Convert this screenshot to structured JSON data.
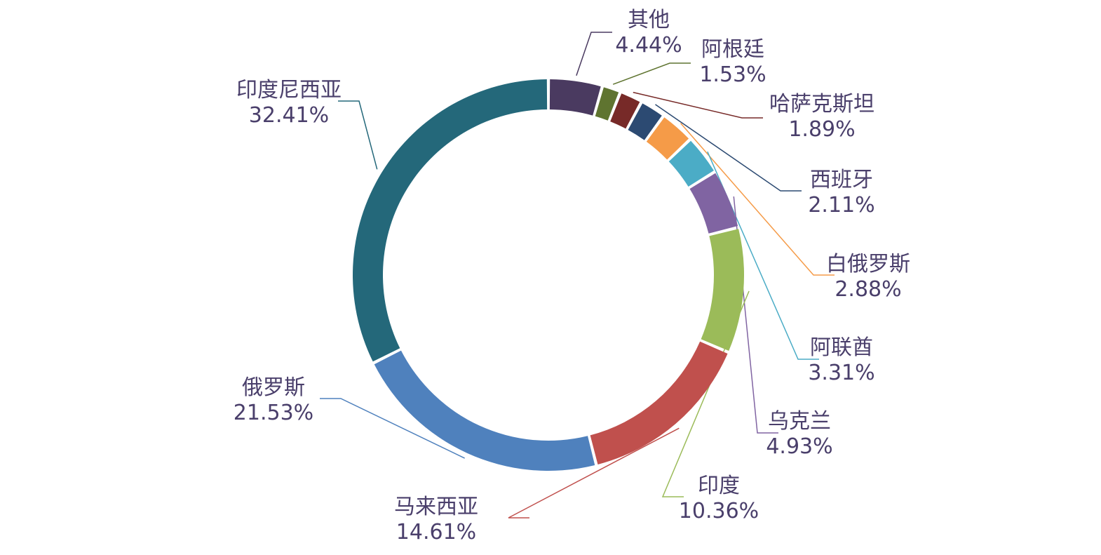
{
  "chart_data": {
    "type": "pie",
    "variant": "donut",
    "title": "",
    "start_angle_deg": 0,
    "direction": "clockwise",
    "slices": [
      {
        "label": "其他",
        "value": 4.44,
        "value_label": "4.44%",
        "color": "#4a3a60"
      },
      {
        "label": "阿根廷",
        "value": 1.53,
        "value_label": "1.53%",
        "color": "#5f7430"
      },
      {
        "label": "哈萨克斯坦",
        "value": 1.89,
        "value_label": "1.89%",
        "color": "#772a28"
      },
      {
        "label": "西班牙",
        "value": 2.11,
        "value_label": "2.11%",
        "color": "#2c4a72"
      },
      {
        "label": "白俄罗斯",
        "value": 2.88,
        "value_label": "2.88%",
        "color": "#f59b48"
      },
      {
        "label": "阿联酋",
        "value": 3.31,
        "value_label": "3.31%",
        "color": "#4bacc6"
      },
      {
        "label": "乌克兰",
        "value": 4.93,
        "value_label": "4.93%",
        "color": "#8064a2"
      },
      {
        "label": "印度",
        "value": 10.36,
        "value_label": "10.36%",
        "color": "#9bbb59"
      },
      {
        "label": "马来西亚",
        "value": 14.61,
        "value_label": "14.61%",
        "color": "#c0504d"
      },
      {
        "label": "俄罗斯",
        "value": 21.53,
        "value_label": "21.53%",
        "color": "#4f81bd"
      },
      {
        "label": "印度尼西亚",
        "value": 32.41,
        "value_label": "32.41%",
        "color": "#24687a"
      }
    ]
  }
}
